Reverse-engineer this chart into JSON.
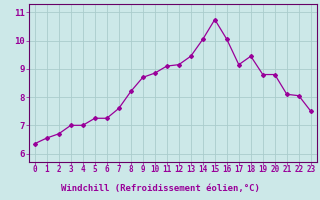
{
  "x": [
    0,
    1,
    2,
    3,
    4,
    5,
    6,
    7,
    8,
    9,
    10,
    11,
    12,
    13,
    14,
    15,
    16,
    17,
    18,
    19,
    20,
    21,
    22,
    23
  ],
  "y": [
    6.35,
    6.55,
    6.7,
    7.0,
    7.0,
    7.25,
    7.25,
    7.6,
    8.2,
    8.7,
    8.85,
    9.1,
    9.15,
    9.45,
    10.05,
    10.75,
    10.05,
    9.15,
    9.45,
    8.8,
    8.8,
    8.1,
    8.05,
    7.5
  ],
  "line_color": "#990099",
  "marker": "D",
  "marker_size": 2.0,
  "bg_color": "#cce8e8",
  "grid_color": "#aacccc",
  "xlabel": "Windchill (Refroidissement éolien,°C)",
  "xlabel_color": "#990099",
  "xlabel_fontsize": 6.5,
  "tick_color": "#990099",
  "tick_fontsize": 5.5,
  "ytick_fontsize": 6.5,
  "ylabel_ticks": [
    6,
    7,
    8,
    9,
    10,
    11
  ],
  "xlim": [
    -0.5,
    23.5
  ],
  "ylim": [
    5.7,
    11.3
  ],
  "spine_color": "#660066",
  "bottom_strip_color": "#6666aa",
  "bottom_strip_text_color": "#990099"
}
